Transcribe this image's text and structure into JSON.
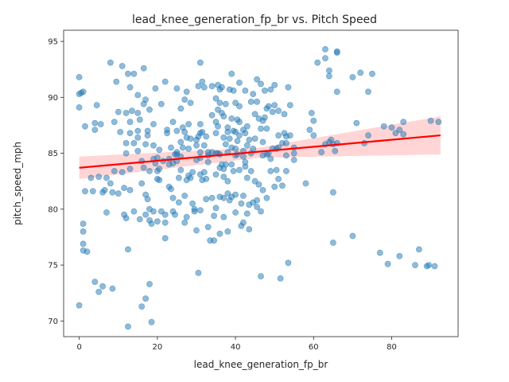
{
  "chart_data": {
    "type": "scatter",
    "title": "lead_knee_generation_fp_br vs. Pitch Speed",
    "xlabel": "lead_knee_generation_fp_br",
    "ylabel": "pitch_speed_mph",
    "xlim": [
      -4,
      97
    ],
    "ylim": [
      68.6,
      96.0
    ],
    "xticks": [
      0,
      20,
      40,
      60,
      80
    ],
    "yticks": [
      70,
      75,
      80,
      85,
      90,
      95
    ],
    "grid": false,
    "legend": "none",
    "colors": {
      "points": "#1f77b4",
      "regression": "#ff0000",
      "band": "#ffb3b3"
    },
    "regression": {
      "x": [
        0,
        92.5
      ],
      "y": [
        83.7,
        86.6
      ]
    },
    "confidence_band": {
      "x": [
        0,
        46,
        92.5
      ],
      "lower": [
        82.7,
        84.6,
        84.9
      ],
      "upper": [
        84.7,
        85.5,
        88.3
      ]
    },
    "points": [
      [
        0,
        90.3
      ],
      [
        0,
        89.1
      ],
      [
        0,
        91.8
      ],
      [
        0,
        71.4
      ],
      [
        0.5,
        90.4
      ],
      [
        1,
        78.7
      ],
      [
        1,
        78.0
      ],
      [
        1,
        76.9
      ],
      [
        1,
        76.3
      ],
      [
        1.5,
        87.4
      ],
      [
        1.5,
        81.6
      ],
      [
        2,
        76.2
      ],
      [
        1,
        90.5
      ],
      [
        3,
        82.8
      ],
      [
        3.5,
        81.6
      ],
      [
        4,
        87.7
      ],
      [
        4,
        87.1
      ],
      [
        4,
        73.5
      ],
      [
        4.5,
        89.3
      ],
      [
        5,
        82.9
      ],
      [
        5,
        72.6
      ],
      [
        5.5,
        87.6
      ],
      [
        6,
        81.5
      ],
      [
        6,
        73.1
      ],
      [
        6.5,
        81.7
      ],
      [
        7,
        79.7
      ],
      [
        7,
        82.8
      ],
      [
        8,
        93.1
      ],
      [
        8,
        82.3
      ],
      [
        8.5,
        72.9
      ],
      [
        8.5,
        81.5
      ],
      [
        9,
        87.8
      ],
      [
        9,
        83.4
      ],
      [
        9.5,
        91.4
      ],
      [
        10,
        81.4
      ],
      [
        10,
        88.7
      ],
      [
        10.5,
        86.9
      ],
      [
        11,
        83.3
      ],
      [
        11,
        92.8
      ],
      [
        11.5,
        81.9
      ],
      [
        11.5,
        79.5
      ],
      [
        12,
        79.2
      ],
      [
        12,
        85.9
      ],
      [
        12,
        85.0
      ],
      [
        12,
        88.6
      ],
      [
        12.5,
        92.1
      ],
      [
        12.5,
        76.4
      ],
      [
        12.5,
        69.5
      ],
      [
        13,
        87.8
      ],
      [
        13,
        86.8
      ],
      [
        13,
        90.9
      ],
      [
        13,
        83.6
      ],
      [
        13,
        81.7
      ],
      [
        13.5,
        88.8
      ],
      [
        14,
        92.1
      ],
      [
        14,
        85.9
      ],
      [
        14,
        79.8
      ],
      [
        15,
        90.2
      ],
      [
        15,
        86.4
      ],
      [
        15,
        87.0
      ],
      [
        15,
        85.2
      ],
      [
        15,
        88.6
      ],
      [
        15.5,
        88.0
      ],
      [
        15.5,
        79.1
      ],
      [
        16,
        84.3
      ],
      [
        16,
        82.3
      ],
      [
        16,
        71.3
      ],
      [
        16.5,
        92.6
      ],
      [
        16.5,
        89.4
      ],
      [
        16.5,
        83.7
      ],
      [
        17,
        85.8
      ],
      [
        17,
        81.3
      ],
      [
        17,
        89.8
      ],
      [
        17,
        79.5
      ],
      [
        17,
        72.0
      ],
      [
        17.5,
        86.6
      ],
      [
        17.5,
        87.0
      ],
      [
        17.5,
        80.9
      ],
      [
        18,
        88.9
      ],
      [
        18,
        83.4
      ],
      [
        18,
        80.0
      ],
      [
        18,
        79.0
      ],
      [
        18,
        73.3
      ],
      [
        18.5,
        69.9
      ],
      [
        18.5,
        78.7
      ],
      [
        19,
        85.7
      ],
      [
        19,
        84.5
      ],
      [
        19,
        87.6
      ],
      [
        19,
        79.8
      ],
      [
        19.5,
        84.1
      ],
      [
        19.5,
        90.8
      ],
      [
        20,
        84.6
      ],
      [
        20,
        83.4
      ],
      [
        20,
        82.7
      ],
      [
        20,
        78.9
      ],
      [
        20.5,
        85.3
      ],
      [
        20.5,
        83.6
      ],
      [
        20.5,
        82.6
      ],
      [
        21,
        89.4
      ],
      [
        21,
        79.8
      ],
      [
        21.5,
        84.3
      ],
      [
        22,
        91.4
      ],
      [
        22,
        79.5
      ],
      [
        22,
        78.8
      ],
      [
        22,
        77.4
      ],
      [
        22.5,
        87.1
      ],
      [
        22.5,
        86.8
      ],
      [
        23,
        84.5
      ],
      [
        23,
        84.0
      ],
      [
        23,
        82.0
      ],
      [
        23.5,
        81.8
      ],
      [
        23.5,
        85.5
      ],
      [
        24,
        84.1
      ],
      [
        24,
        81.0
      ],
      [
        24,
        79.8
      ],
      [
        24,
        87.8
      ],
      [
        24.5,
        84.9
      ],
      [
        24.5,
        79.5
      ],
      [
        25,
        84.3
      ],
      [
        25,
        84.9
      ],
      [
        25,
        85.1
      ],
      [
        25,
        87.0
      ],
      [
        25,
        90.8
      ],
      [
        25.5,
        80.6
      ],
      [
        25.5,
        82.8
      ],
      [
        26,
        86.0
      ],
      [
        26,
        89.0
      ],
      [
        26,
        84.7
      ],
      [
        26,
        83.5
      ],
      [
        26.5,
        87.3
      ],
      [
        26.5,
        85.5
      ],
      [
        27,
        89.8
      ],
      [
        27,
        86.9
      ],
      [
        27,
        81.2
      ],
      [
        27,
        78.8
      ],
      [
        27.5,
        86.4
      ],
      [
        27.5,
        90.5
      ],
      [
        27.5,
        82.6
      ],
      [
        27.5,
        79.3
      ],
      [
        28,
        87.6
      ],
      [
        28,
        83.0
      ],
      [
        28,
        85.4
      ],
      [
        28.5,
        89.5
      ],
      [
        28.5,
        86.3
      ],
      [
        28.5,
        82.8
      ],
      [
        29,
        83.3
      ],
      [
        29,
        80.5
      ],
      [
        29.5,
        80.0
      ],
      [
        29.5,
        79.8
      ],
      [
        30,
        86.2
      ],
      [
        30,
        85.7
      ],
      [
        30,
        84.4
      ],
      [
        30,
        78.1
      ],
      [
        30.5,
        91.0
      ],
      [
        30.5,
        86.5
      ],
      [
        30.5,
        74.3
      ],
      [
        31,
        87.6
      ],
      [
        31,
        86.8
      ],
      [
        31,
        85.1
      ],
      [
        31,
        84.6
      ],
      [
        31,
        83.1
      ],
      [
        31,
        79.9
      ],
      [
        31,
        93.1
      ],
      [
        31.5,
        91.4
      ],
      [
        31.5,
        86.9
      ],
      [
        31.5,
        82.6
      ],
      [
        32,
        90.9
      ],
      [
        32,
        85.7
      ],
      [
        32,
        83.3
      ],
      [
        32.5,
        86.5
      ],
      [
        32.5,
        82.7
      ],
      [
        32.5,
        80.9
      ],
      [
        33,
        85.1
      ],
      [
        33,
        84.8
      ],
      [
        33,
        84.2
      ],
      [
        33,
        78.4
      ],
      [
        33.5,
        77.2
      ],
      [
        34,
        91.0
      ],
      [
        34,
        88.4
      ],
      [
        34,
        85.1
      ],
      [
        34,
        81.0
      ],
      [
        34.5,
        79.4
      ],
      [
        34.5,
        77.2
      ],
      [
        35,
        89.9
      ],
      [
        35,
        87.8
      ],
      [
        35,
        86.8
      ],
      [
        35,
        85.0
      ],
      [
        35,
        83.1
      ],
      [
        35,
        80.1
      ],
      [
        35.5,
        91.1
      ],
      [
        35.5,
        88.9
      ],
      [
        35.5,
        87.4
      ],
      [
        35.5,
        85.0
      ],
      [
        36,
        90.7
      ],
      [
        36,
        89.5
      ],
      [
        36,
        84.9
      ],
      [
        36,
        83.7
      ],
      [
        36,
        81.1
      ],
      [
        36,
        77.8
      ],
      [
        36.5,
        90.9
      ],
      [
        36.5,
        88.6
      ],
      [
        36.5,
        84.0
      ],
      [
        37,
        88.3
      ],
      [
        37,
        86.4
      ],
      [
        37,
        83.6
      ],
      [
        37,
        82.9
      ],
      [
        37,
        81.0
      ],
      [
        37,
        79.3
      ],
      [
        37.5,
        89.4
      ],
      [
        37.5,
        85.8
      ],
      [
        37.5,
        84.0
      ],
      [
        38,
        87.3
      ],
      [
        38,
        86.9
      ],
      [
        38,
        85.1
      ],
      [
        38,
        82.5
      ],
      [
        38,
        81.4
      ],
      [
        38,
        78.0
      ],
      [
        38.5,
        90.7
      ],
      [
        38.5,
        86.3
      ],
      [
        38.5,
        80.8
      ],
      [
        39,
        92.1
      ],
      [
        39,
        88.1
      ],
      [
        39,
        85.5
      ],
      [
        39,
        84.0
      ],
      [
        39,
        81.1
      ],
      [
        39.5,
        90.6
      ],
      [
        39.5,
        87.0
      ],
      [
        39.5,
        83.4
      ],
      [
        40,
        89.5
      ],
      [
        40,
        86.9
      ],
      [
        40,
        85.4
      ],
      [
        40,
        84.8
      ],
      [
        40,
        81.3
      ],
      [
        40,
        79.7
      ],
      [
        40.5,
        88.0
      ],
      [
        40.5,
        86.1
      ],
      [
        40.5,
        84.9
      ],
      [
        41,
        91.3
      ],
      [
        41,
        89.2
      ],
      [
        41,
        87.8
      ],
      [
        41,
        86.6
      ],
      [
        41,
        83.5
      ],
      [
        41.5,
        80.5
      ],
      [
        41.5,
        78.5
      ],
      [
        42,
        87.1
      ],
      [
        42,
        85.2
      ],
      [
        42,
        84.7
      ],
      [
        42,
        81.2
      ],
      [
        42,
        78.8
      ],
      [
        42.5,
        90.6
      ],
      [
        42.5,
        86.8
      ],
      [
        42.5,
        84.2
      ],
      [
        42.5,
        83.8
      ],
      [
        43,
        87.4
      ],
      [
        43,
        85.7
      ],
      [
        43,
        82.8
      ],
      [
        43,
        79.6
      ],
      [
        43.5,
        86.2
      ],
      [
        43.5,
        80.4
      ],
      [
        43.5,
        78.2
      ],
      [
        44,
        89.6
      ],
      [
        44,
        85.0
      ],
      [
        44,
        83.4
      ],
      [
        44.5,
        90.3
      ],
      [
        44.5,
        85.4
      ],
      [
        44.5,
        80.6
      ],
      [
        45,
        88.5
      ],
      [
        45,
        86.3
      ],
      [
        45,
        82.5
      ],
      [
        45.5,
        91.6
      ],
      [
        45.5,
        89.6
      ],
      [
        45.5,
        80.8
      ],
      [
        45.5,
        80.2
      ],
      [
        46,
        88.1
      ],
      [
        46,
        82.2
      ],
      [
        46.5,
        91.2
      ],
      [
        46.5,
        87.2
      ],
      [
        46.5,
        79.8
      ],
      [
        46.5,
        74.0
      ],
      [
        47,
        87.9
      ],
      [
        47,
        86.0
      ],
      [
        47,
        84.8
      ],
      [
        47,
        81.7
      ],
      [
        47.5,
        90.6
      ],
      [
        47.5,
        88.2
      ],
      [
        48,
        89.0
      ],
      [
        48,
        87.2
      ],
      [
        48,
        84.9
      ],
      [
        48,
        81.0
      ],
      [
        48.5,
        89.2
      ],
      [
        48.5,
        85.0
      ],
      [
        49,
        90.7
      ],
      [
        49,
        84.5
      ],
      [
        49,
        83.4
      ],
      [
        49.5,
        88.7
      ],
      [
        49.5,
        85.4
      ],
      [
        50,
        91.1
      ],
      [
        50,
        89.3
      ],
      [
        50,
        82.0
      ],
      [
        50.5,
        85.4
      ],
      [
        50.5,
        83.5
      ],
      [
        51,
        88.8
      ],
      [
        51,
        86.6
      ],
      [
        51,
        85.5
      ],
      [
        51,
        82.7
      ],
      [
        51.5,
        73.8
      ],
      [
        52,
        85.9
      ],
      [
        52,
        82.1
      ],
      [
        52.5,
        88.5
      ],
      [
        52.5,
        86.8
      ],
      [
        53,
        86.5
      ],
      [
        53,
        85.9
      ],
      [
        53,
        84.8
      ],
      [
        53,
        83.4
      ],
      [
        53.5,
        90.9
      ],
      [
        53.5,
        75.2
      ],
      [
        54,
        89.3
      ],
      [
        54,
        86.6
      ],
      [
        55,
        85.5
      ],
      [
        55,
        85.0
      ],
      [
        55,
        84.4
      ],
      [
        58,
        82.3
      ],
      [
        59,
        87.1
      ],
      [
        59.5,
        88.6
      ],
      [
        60,
        87.9
      ],
      [
        60,
        86.6
      ],
      [
        61,
        93.1
      ],
      [
        62,
        85.1
      ],
      [
        63,
        93.5
      ],
      [
        63,
        94.3
      ],
      [
        63,
        85.8
      ],
      [
        64,
        86.0
      ],
      [
        64,
        91.9
      ],
      [
        64,
        92.4
      ],
      [
        64.5,
        86.2
      ],
      [
        65,
        81.5
      ],
      [
        65,
        85.8
      ],
      [
        65,
        77.0
      ],
      [
        65.5,
        85.2
      ],
      [
        66,
        85.9
      ],
      [
        66,
        90.5
      ],
      [
        66,
        94.0
      ],
      [
        66,
        94.1
      ],
      [
        70,
        91.8
      ],
      [
        70,
        77.6
      ],
      [
        71,
        87.7
      ],
      [
        72,
        92.2
      ],
      [
        73,
        85.9
      ],
      [
        74,
        86.6
      ],
      [
        74,
        90.5
      ],
      [
        75,
        92.1
      ],
      [
        77,
        76.1
      ],
      [
        78,
        87.4
      ],
      [
        79,
        75.1
      ],
      [
        80,
        87.3
      ],
      [
        81,
        86.8
      ],
      [
        82,
        75.8
      ],
      [
        82,
        87.1
      ],
      [
        83,
        86.7
      ],
      [
        83,
        87.8
      ],
      [
        86,
        75.0
      ],
      [
        87,
        76.4
      ],
      [
        89,
        74.9
      ],
      [
        89.5,
        75.0
      ],
      [
        90,
        87.9
      ],
      [
        91,
        74.9
      ],
      [
        92,
        87.8
      ]
    ]
  }
}
